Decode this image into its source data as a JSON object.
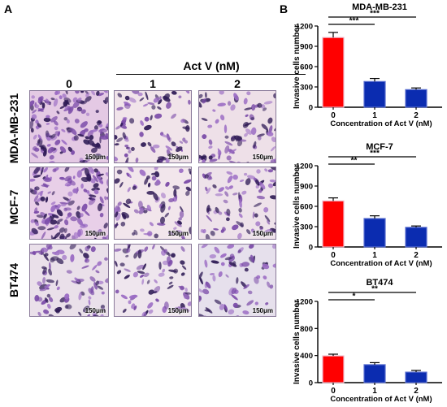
{
  "panel_a": {
    "letter": "A",
    "treatment_label": "Act V (nM)",
    "concentrations": [
      "0",
      "1",
      "2"
    ],
    "cell_lines": [
      "MDA-MB-231",
      "MCF-7",
      "BT474"
    ],
    "scale_bar": "150μm"
  },
  "panel_b": {
    "letter": "B"
  },
  "chart_data": [
    {
      "type": "bar",
      "title": "MDA-MB-231",
      "categories": [
        "0",
        "1",
        "2"
      ],
      "values": [
        1030,
        380,
        260
      ],
      "errors": [
        75,
        45,
        25
      ],
      "xlabel": "Concentration of Act V (nM)",
      "ylabel": "Invasive cells number",
      "ylim": [
        0,
        1200
      ],
      "yticks": [
        "0",
        "300",
        "600",
        "900",
        "1200"
      ],
      "significance": [
        {
          "from": "0",
          "to": "1",
          "label": "***"
        },
        {
          "from": "0",
          "to": "2",
          "label": "***"
        }
      ],
      "colors": [
        "#ff0000",
        "#0b2cb0",
        "#0b2cb0"
      ]
    },
    {
      "type": "bar",
      "title": "MCF-7",
      "categories": [
        "0",
        "1",
        "2"
      ],
      "values": [
        680,
        420,
        290
      ],
      "errors": [
        45,
        40,
        20
      ],
      "xlabel": "Concentration of Act V (nM)",
      "ylabel": "Invasive cells number",
      "ylim": [
        0,
        1200
      ],
      "yticks": [
        "0",
        "300",
        "600",
        "900",
        "1200"
      ],
      "significance": [
        {
          "from": "0",
          "to": "1",
          "label": "**"
        },
        {
          "from": "0",
          "to": "2",
          "label": "***"
        }
      ],
      "colors": [
        "#ff0000",
        "#0b2cb0",
        "#0b2cb0"
      ]
    },
    {
      "type": "bar",
      "title": "BT474",
      "categories": [
        "0",
        "1",
        "2"
      ],
      "values": [
        395,
        265,
        155
      ],
      "errors": [
        25,
        30,
        25
      ],
      "xlabel": "Concentration of Act V (nM)",
      "ylabel": "Invasive cells number",
      "ylim": [
        0,
        1200
      ],
      "yticks": [
        "0",
        "400",
        "800",
        "1200"
      ],
      "significance": [
        {
          "from": "0",
          "to": "1",
          "label": "*"
        },
        {
          "from": "0",
          "to": "2",
          "label": "**"
        }
      ],
      "colors": [
        "#ff0000",
        "#0b2cb0",
        "#0b2cb0"
      ]
    }
  ]
}
